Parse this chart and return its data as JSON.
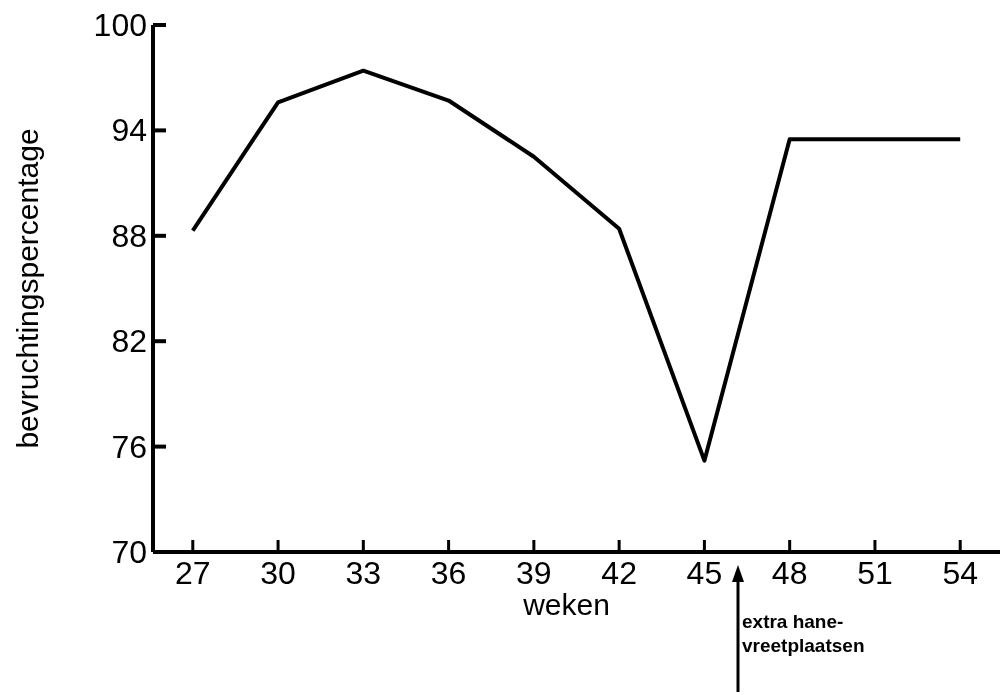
{
  "chart_data": {
    "type": "line",
    "xlabel": "weken",
    "ylabel": "bevruchtingspercentage",
    "x": [
      27,
      30,
      33,
      36,
      39,
      42,
      45,
      48,
      51,
      54
    ],
    "series": [
      {
        "color": "#000000",
        "values": [
          88.3,
          95.6,
          97.4,
          95.7,
          92.5,
          88.4,
          75.2,
          93.5,
          93.5,
          93.5
        ]
      }
    ],
    "xlim": [
      25.6,
      55.4
    ],
    "xticks": [
      27,
      30,
      33,
      36,
      39,
      42,
      45,
      48,
      51,
      54
    ],
    "ylim": [
      70,
      100
    ],
    "yticks": [
      70,
      76,
      82,
      88,
      94,
      100
    ],
    "grid": false,
    "marker": "none",
    "line_style": "solid",
    "annotations": [
      "extra hane-\nvreetplaatsen"
    ]
  }
}
